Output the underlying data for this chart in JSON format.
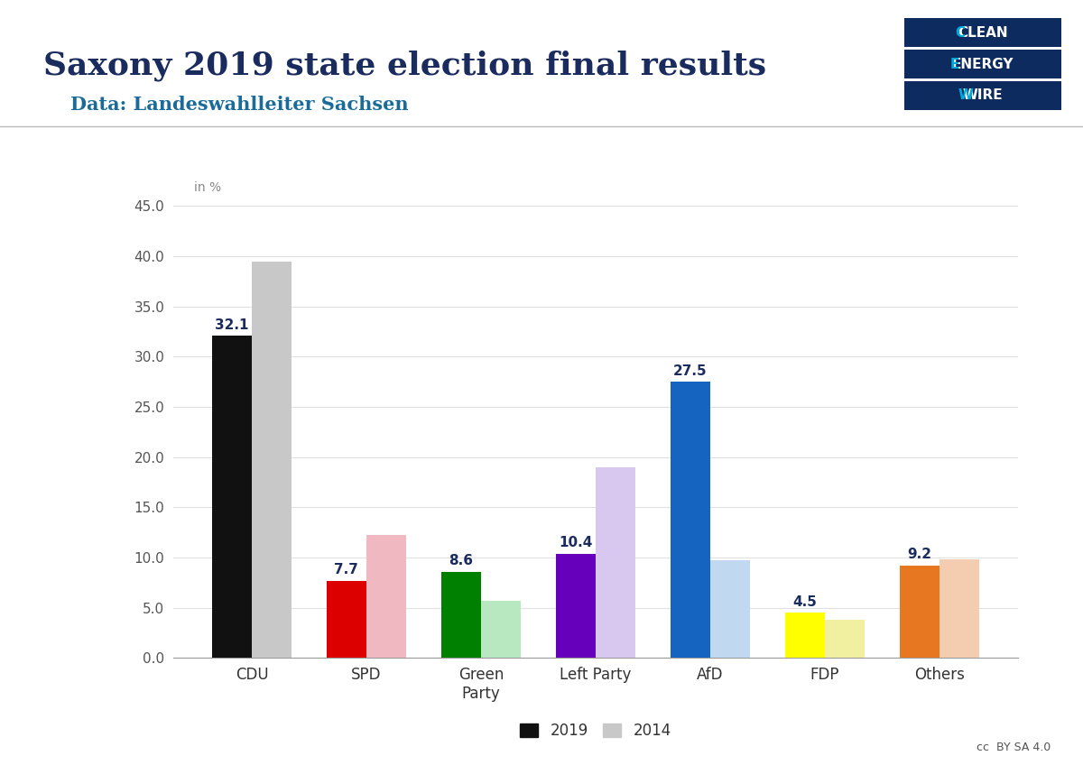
{
  "title": "Saxony 2019 state election final results",
  "subtitle": "Data: Landeswahlleiter Sachsen",
  "categories": [
    "CDU",
    "SPD",
    "Green\nParty",
    "Left Party",
    "AfD",
    "FDP",
    "Others"
  ],
  "values_2019": [
    32.1,
    7.7,
    8.6,
    10.4,
    27.5,
    4.5,
    9.2
  ],
  "values_2014": [
    39.5,
    12.2,
    5.7,
    19.0,
    9.7,
    3.8,
    9.8
  ],
  "colors_2019": [
    "#111111",
    "#dd0000",
    "#008000",
    "#6600bb",
    "#1565c0",
    "#ffff00",
    "#e87722"
  ],
  "colors_2014": [
    "#c8c8c8",
    "#f0b8c0",
    "#b8e8c0",
    "#d8c8f0",
    "#c0d8f0",
    "#f0f0a0",
    "#f4cdb0"
  ],
  "ylabel": "in %",
  "ylim": [
    0,
    48
  ],
  "yticks": [
    0.0,
    5.0,
    10.0,
    15.0,
    20.0,
    25.0,
    30.0,
    35.0,
    40.0,
    45.0
  ],
  "legend_2019": "2019",
  "legend_2014": "2014",
  "title_color": "#1a2b5e",
  "subtitle_color": "#1a6b9a",
  "background_color": "#ffffff",
  "bar_width": 0.35,
  "title_fontsize": 26,
  "subtitle_fontsize": 15,
  "label_fontsize": 12,
  "tick_fontsize": 11,
  "value_fontsize": 11,
  "logo_navy": "#0d2b5e",
  "logo_cyan": "#00aadd",
  "cc_text": "cc  BY SA 4.0"
}
